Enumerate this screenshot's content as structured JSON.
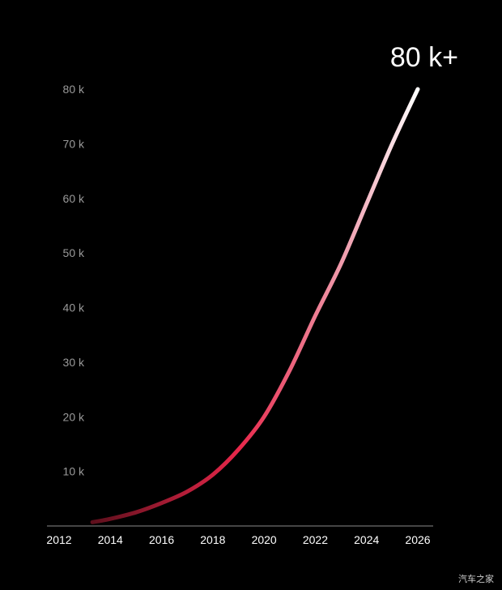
{
  "chart_data": {
    "type": "line",
    "x": [
      2013.3,
      2014,
      2015,
      2016,
      2017,
      2018,
      2019,
      2020,
      2021,
      2022,
      2023,
      2024,
      2025,
      2026
    ],
    "series": [
      {
        "values": [
          700,
          1300,
          2500,
          4200,
          6300,
          9400,
          14000,
          20000,
          28500,
          38500,
          48000,
          59000,
          70000,
          80000
        ]
      }
    ],
    "xticks": [
      "2012",
      "2014",
      "2016",
      "2018",
      "2020",
      "2022",
      "2024",
      "2026"
    ],
    "xlim": [
      2012,
      2026
    ],
    "yticks": [
      10000,
      20000,
      30000,
      40000,
      50000,
      60000,
      70000,
      80000
    ],
    "ytick_labels": [
      "10 k",
      "20 k",
      "30 k",
      "40 k",
      "50 k",
      "60 k",
      "70 k",
      "80 k"
    ],
    "ylim": [
      0,
      80000
    ],
    "end_label": "80 k+",
    "grid": false,
    "colors": {
      "line_start": "#5e0f1c",
      "line_mid": "#e8274a",
      "line_end": "#ffffff",
      "axis": "#8a8a8a"
    }
  },
  "watermark": "汽车之家"
}
